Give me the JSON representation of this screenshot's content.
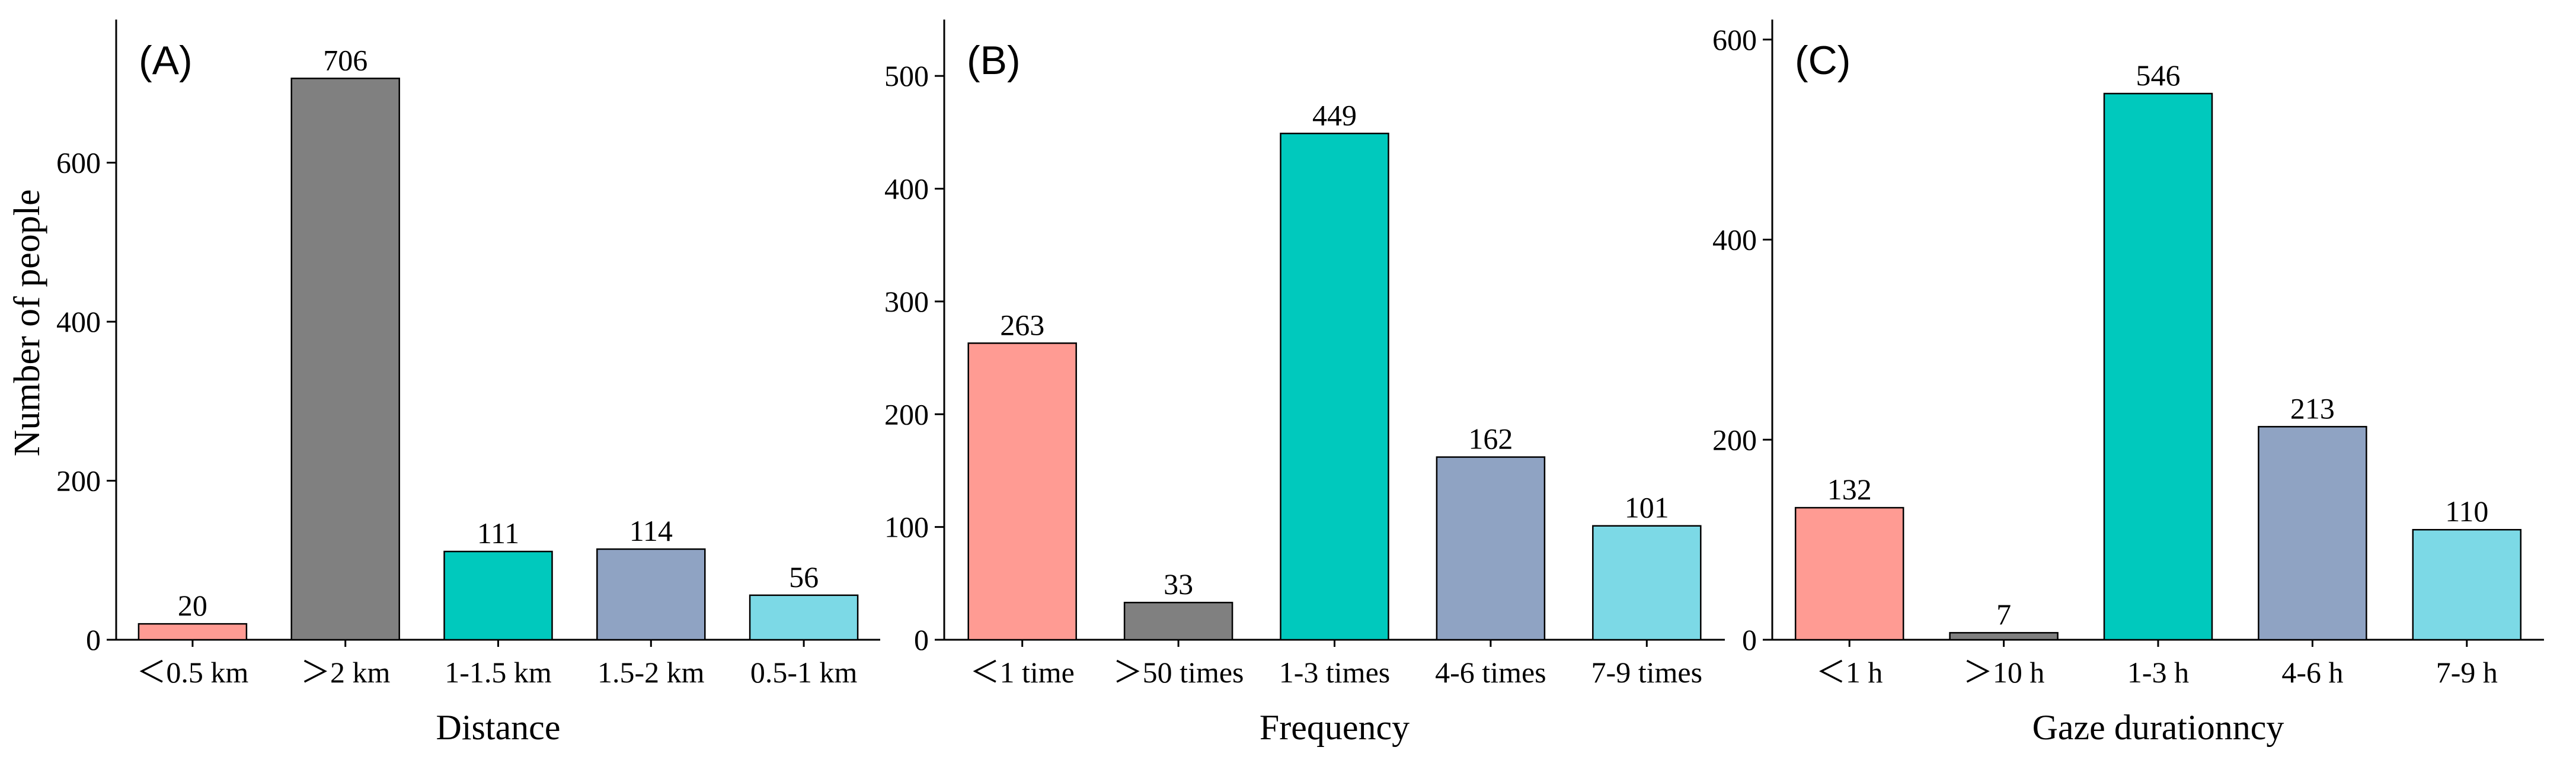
{
  "ylabel": "Number of people",
  "chart_data": [
    {
      "type": "bar",
      "panel_label": "(A)",
      "title": "",
      "xlabel": "Distance",
      "ylabel": "Number of people",
      "categories": [
        "＜0.5 km",
        "＞2 km",
        "1-1.5 km",
        "1.5-2 km",
        "0.5-1 km"
      ],
      "values": [
        20,
        706,
        111,
        114,
        56
      ],
      "value_labels": [
        "20",
        "706",
        "111",
        "114",
        "56"
      ],
      "ylim": [
        0,
        780
      ],
      "yticks": [
        0,
        200,
        400,
        600
      ],
      "ytick_labels": [
        "0",
        "200",
        "400",
        "600"
      ],
      "colors": [
        "#FF9B93",
        "#808080",
        "#00C9BD",
        "#8FA3C3",
        "#7CD9E6"
      ],
      "grid": false
    },
    {
      "type": "bar",
      "panel_label": "(B)",
      "title": "",
      "xlabel": "Frequency",
      "ylabel": "",
      "categories": [
        "＜1 time",
        "＞50 times",
        "1-3 times",
        "4-6 times",
        "7-9 times"
      ],
      "values": [
        263,
        33,
        449,
        162,
        101
      ],
      "value_labels": [
        "263",
        "33",
        "449",
        "162",
        "101"
      ],
      "ylim": [
        0,
        550
      ],
      "yticks": [
        0,
        100,
        200,
        300,
        400,
        500
      ],
      "ytick_labels": [
        "0",
        "100",
        "200",
        "300",
        "400",
        "500"
      ],
      "colors": [
        "#FF9B93",
        "#808080",
        "#00C9BD",
        "#8FA3C3",
        "#7CD9E6"
      ],
      "grid": false
    },
    {
      "type": "bar",
      "panel_label": "(C)",
      "title": "",
      "xlabel": "Gaze durationncy",
      "ylabel": "",
      "categories": [
        "＜1 h",
        "＞10 h",
        "1-3 h",
        "4-6 h",
        "7-9 h"
      ],
      "values": [
        132,
        7,
        546,
        213,
        110
      ],
      "value_labels": [
        "132",
        "7",
        "546",
        "213",
        "110"
      ],
      "ylim": [
        0,
        620
      ],
      "yticks": [
        0,
        200,
        400,
        600
      ],
      "ytick_labels": [
        "0",
        "200",
        "400",
        "600"
      ],
      "colors": [
        "#FF9B93",
        "#808080",
        "#00C9BD",
        "#8FA3C3",
        "#7CD9E6"
      ],
      "grid": false
    }
  ]
}
